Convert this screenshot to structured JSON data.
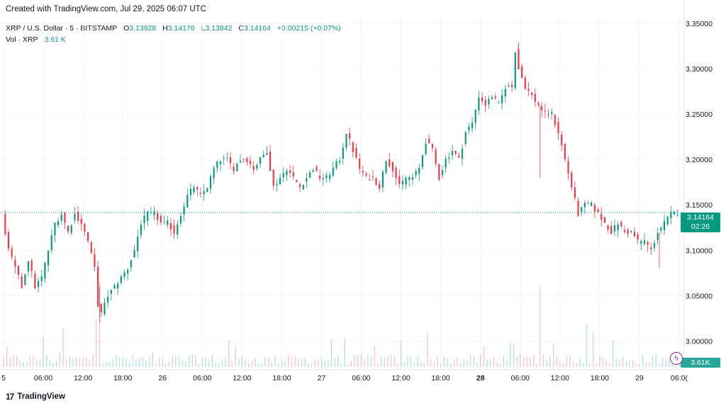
{
  "header": {
    "caption": "Created with TradingView.com, Jul 29, 2025 06:07 UTC"
  },
  "legend": {
    "symbol": "XRP / U.S. Dollar · 5 · BITSTAMP",
    "open_label": "O",
    "open": "3.13928",
    "high_label": "H",
    "high": "3.14176",
    "low_label": "L",
    "low": "3.13842",
    "close_label": "C",
    "close": "3.14164",
    "change": "+0.00215 (+0.07%)",
    "vol_label": "Vol · XRP",
    "vol_value": "3.61 K"
  },
  "badges": {
    "price": "3.14164",
    "countdown": "02:26",
    "volume": "3.61K"
  },
  "footer": {
    "logo_text": "TradingView",
    "logo_mark": "17"
  },
  "colors": {
    "up": "#089981",
    "down": "#f23645",
    "grid": "#f0f3fa",
    "line": "#089981"
  },
  "chart_data": {
    "type": "candlestick",
    "symbol": "XRP / U.S. Dollar",
    "interval": "5",
    "exchange": "BITSTAMP",
    "ylim": [
      2.97,
      3.36
    ],
    "y_ticks": [
      "3.35000",
      "3.30000",
      "3.25000",
      "3.20000",
      "3.15000",
      "3.10000",
      "3.05000",
      "3.00000"
    ],
    "x_ticks": [
      "5",
      "06:00",
      "12:00",
      "18:00",
      "26",
      "06:00",
      "12:00",
      "18:00",
      "27",
      "06:00",
      "12:00",
      "18:00",
      "28",
      "06:00",
      "12:00",
      "18:00",
      "29",
      "06:0("
    ],
    "x_range_hours": [
      0,
      102
    ],
    "last_price": 3.14164,
    "last_price_hours": 102,
    "price_path": [
      [
        0,
        3.14
      ],
      [
        1,
        3.1
      ],
      [
        2,
        3.08
      ],
      [
        3,
        3.06
      ],
      [
        4,
        3.09
      ],
      [
        5,
        3.06
      ],
      [
        6,
        3.07
      ],
      [
        7,
        3.1
      ],
      [
        8,
        3.13
      ],
      [
        9,
        3.14
      ],
      [
        10,
        3.12
      ],
      [
        11,
        3.14
      ],
      [
        12,
        3.13
      ],
      [
        13,
        3.11
      ],
      [
        14,
        3.08
      ],
      [
        14.5,
        3.04
      ],
      [
        15,
        3.03
      ],
      [
        16,
        3.05
      ],
      [
        17,
        3.06
      ],
      [
        18,
        3.07
      ],
      [
        19,
        3.08
      ],
      [
        20,
        3.1
      ],
      [
        21,
        3.13
      ],
      [
        22,
        3.14
      ],
      [
        23,
        3.14
      ],
      [
        24,
        3.13
      ],
      [
        25,
        3.13
      ],
      [
        26,
        3.12
      ],
      [
        27,
        3.14
      ],
      [
        28,
        3.16
      ],
      [
        29,
        3.17
      ],
      [
        30,
        3.16
      ],
      [
        31,
        3.17
      ],
      [
        32,
        3.19
      ],
      [
        33,
        3.2
      ],
      [
        34,
        3.2
      ],
      [
        35,
        3.19
      ],
      [
        36,
        3.2
      ],
      [
        37,
        3.2
      ],
      [
        38,
        3.19
      ],
      [
        39,
        3.2
      ],
      [
        40,
        3.21
      ],
      [
        41,
        3.17
      ],
      [
        42,
        3.18
      ],
      [
        43,
        3.19
      ],
      [
        44,
        3.18
      ],
      [
        45,
        3.17
      ],
      [
        46,
        3.18
      ],
      [
        47,
        3.19
      ],
      [
        48,
        3.18
      ],
      [
        49,
        3.18
      ],
      [
        50,
        3.19
      ],
      [
        51,
        3.2
      ],
      [
        52,
        3.23
      ],
      [
        53,
        3.21
      ],
      [
        54,
        3.19
      ],
      [
        55,
        3.18
      ],
      [
        56,
        3.18
      ],
      [
        57,
        3.17
      ],
      [
        58,
        3.2
      ],
      [
        59,
        3.19
      ],
      [
        60,
        3.17
      ],
      [
        61,
        3.18
      ],
      [
        62,
        3.18
      ],
      [
        63,
        3.19
      ],
      [
        64,
        3.22
      ],
      [
        65,
        3.21
      ],
      [
        66,
        3.18
      ],
      [
        67,
        3.2
      ],
      [
        68,
        3.21
      ],
      [
        69,
        3.2
      ],
      [
        70,
        3.23
      ],
      [
        71,
        3.24
      ],
      [
        72,
        3.27
      ],
      [
        73,
        3.26
      ],
      [
        74,
        3.27
      ],
      [
        75,
        3.26
      ],
      [
        76,
        3.28
      ],
      [
        77,
        3.28
      ],
      [
        77.5,
        3.32
      ],
      [
        78,
        3.3
      ],
      [
        79,
        3.28
      ],
      [
        80,
        3.27
      ],
      [
        81,
        3.26
      ],
      [
        82,
        3.25
      ],
      [
        83,
        3.25
      ],
      [
        84,
        3.23
      ],
      [
        85,
        3.2
      ],
      [
        86,
        3.17
      ],
      [
        87,
        3.14
      ],
      [
        88,
        3.15
      ],
      [
        89,
        3.15
      ],
      [
        90,
        3.14
      ],
      [
        91,
        3.13
      ],
      [
        92,
        3.12
      ],
      [
        93,
        3.13
      ],
      [
        94,
        3.12
      ],
      [
        95,
        3.12
      ],
      [
        96,
        3.11
      ],
      [
        97,
        3.11
      ],
      [
        98,
        3.1
      ],
      [
        99,
        3.12
      ],
      [
        100,
        3.13
      ],
      [
        101,
        3.14
      ],
      [
        102,
        3.14164
      ]
    ],
    "volume_spikes": [
      [
        6,
        0.35
      ],
      [
        9,
        0.45
      ],
      [
        14.2,
        0.55
      ],
      [
        14.7,
        1.0
      ],
      [
        34,
        0.3
      ],
      [
        56,
        0.25
      ],
      [
        60,
        0.3
      ],
      [
        64,
        0.4
      ],
      [
        81,
        0.95
      ],
      [
        88,
        0.5
      ],
      [
        89,
        0.4
      ],
      [
        92,
        0.3
      ]
    ]
  }
}
